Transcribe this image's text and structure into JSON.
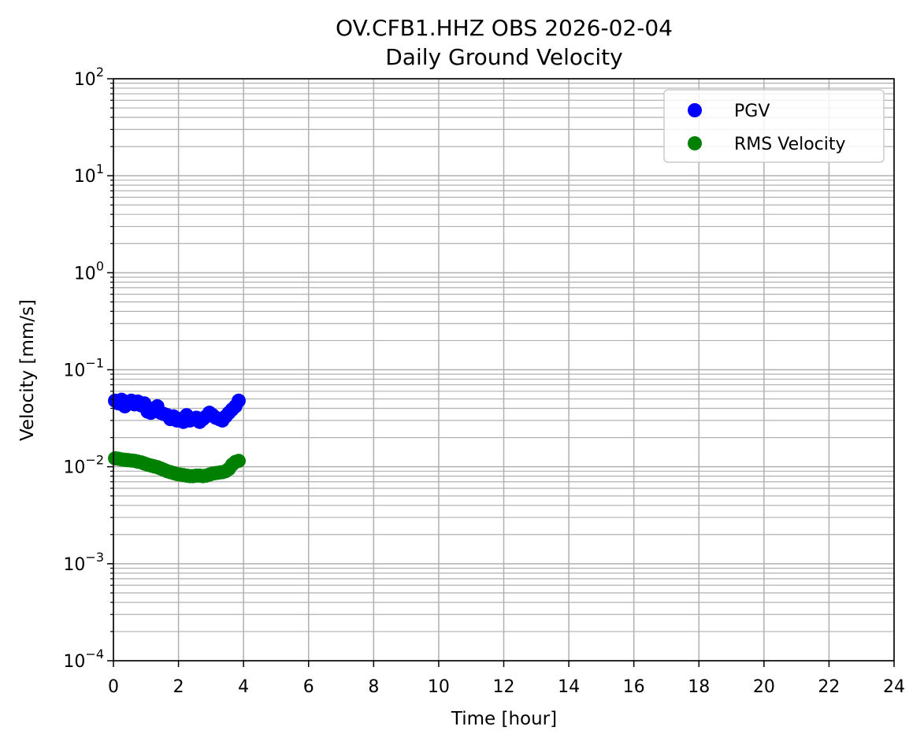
{
  "chart_data": {
    "type": "scatter",
    "title": "OV.CFB1.HHZ OBS 2026-02-04",
    "subtitle": "Daily Ground Velocity",
    "xlabel": "Time [hour]",
    "ylabel": "Velocity [mm/s]",
    "xlim": [
      0,
      24
    ],
    "ylim": [
      0.0001,
      100
    ],
    "yscale": "log",
    "grid": true,
    "legend_position": "top-right",
    "x_ticks": [
      "0",
      "2",
      "4",
      "6",
      "8",
      "10",
      "12",
      "14",
      "16",
      "18",
      "20",
      "22",
      "24"
    ],
    "y_ticks": [
      {
        "base": "10",
        "exp": "−4",
        "value": 0.0001
      },
      {
        "base": "10",
        "exp": "−3",
        "value": 0.001
      },
      {
        "base": "10",
        "exp": "−2",
        "value": 0.01
      },
      {
        "base": "10",
        "exp": "−1",
        "value": 0.1
      },
      {
        "base": "10",
        "exp": "0",
        "value": 1
      },
      {
        "base": "10",
        "exp": "1",
        "value": 10
      },
      {
        "base": "10",
        "exp": "2",
        "value": 100
      }
    ],
    "series": [
      {
        "name": "PGV",
        "color": "#0000ff",
        "points": [
          [
            0.05,
            0.048
          ],
          [
            0.15,
            0.045
          ],
          [
            0.25,
            0.049
          ],
          [
            0.35,
            0.042
          ],
          [
            0.45,
            0.046
          ],
          [
            0.55,
            0.048
          ],
          [
            0.65,
            0.044
          ],
          [
            0.75,
            0.047
          ],
          [
            0.85,
            0.043
          ],
          [
            0.95,
            0.045
          ],
          [
            1.05,
            0.037
          ],
          [
            1.15,
            0.036
          ],
          [
            1.25,
            0.04
          ],
          [
            1.35,
            0.042
          ],
          [
            1.45,
            0.036
          ],
          [
            1.55,
            0.035
          ],
          [
            1.65,
            0.034
          ],
          [
            1.75,
            0.031
          ],
          [
            1.85,
            0.033
          ],
          [
            1.95,
            0.03
          ],
          [
            2.05,
            0.031
          ],
          [
            2.15,
            0.029
          ],
          [
            2.25,
            0.034
          ],
          [
            2.35,
            0.03
          ],
          [
            2.45,
            0.031
          ],
          [
            2.55,
            0.032
          ],
          [
            2.65,
            0.029
          ],
          [
            2.75,
            0.031
          ],
          [
            2.85,
            0.033
          ],
          [
            2.95,
            0.036
          ],
          [
            3.05,
            0.034
          ],
          [
            3.15,
            0.032
          ],
          [
            3.25,
            0.031
          ],
          [
            3.35,
            0.03
          ],
          [
            3.45,
            0.033
          ],
          [
            3.55,
            0.036
          ],
          [
            3.65,
            0.039
          ],
          [
            3.75,
            0.042
          ],
          [
            3.85,
            0.048
          ]
        ]
      },
      {
        "name": "RMS Velocity",
        "color": "#008000",
        "points": [
          [
            0.05,
            0.0122
          ],
          [
            0.15,
            0.0121
          ],
          [
            0.25,
            0.0119
          ],
          [
            0.35,
            0.0118
          ],
          [
            0.45,
            0.0117
          ],
          [
            0.55,
            0.0116
          ],
          [
            0.65,
            0.0115
          ],
          [
            0.75,
            0.0113
          ],
          [
            0.85,
            0.0111
          ],
          [
            0.95,
            0.0108
          ],
          [
            1.05,
            0.0105
          ],
          [
            1.15,
            0.0103
          ],
          [
            1.25,
            0.0101
          ],
          [
            1.35,
            0.0099
          ],
          [
            1.45,
            0.0096
          ],
          [
            1.55,
            0.0093
          ],
          [
            1.65,
            0.009
          ],
          [
            1.75,
            0.0088
          ],
          [
            1.85,
            0.0086
          ],
          [
            1.95,
            0.0084
          ],
          [
            2.05,
            0.0083
          ],
          [
            2.15,
            0.0082
          ],
          [
            2.25,
            0.0081
          ],
          [
            2.35,
            0.008
          ],
          [
            2.45,
            0.008
          ],
          [
            2.55,
            0.0081
          ],
          [
            2.65,
            0.0081
          ],
          [
            2.75,
            0.008
          ],
          [
            2.85,
            0.0081
          ],
          [
            2.95,
            0.0083
          ],
          [
            3.05,
            0.0085
          ],
          [
            3.15,
            0.0086
          ],
          [
            3.25,
            0.0087
          ],
          [
            3.35,
            0.0088
          ],
          [
            3.45,
            0.009
          ],
          [
            3.55,
            0.0095
          ],
          [
            3.65,
            0.0105
          ],
          [
            3.75,
            0.0112
          ],
          [
            3.85,
            0.0115
          ]
        ]
      }
    ]
  }
}
